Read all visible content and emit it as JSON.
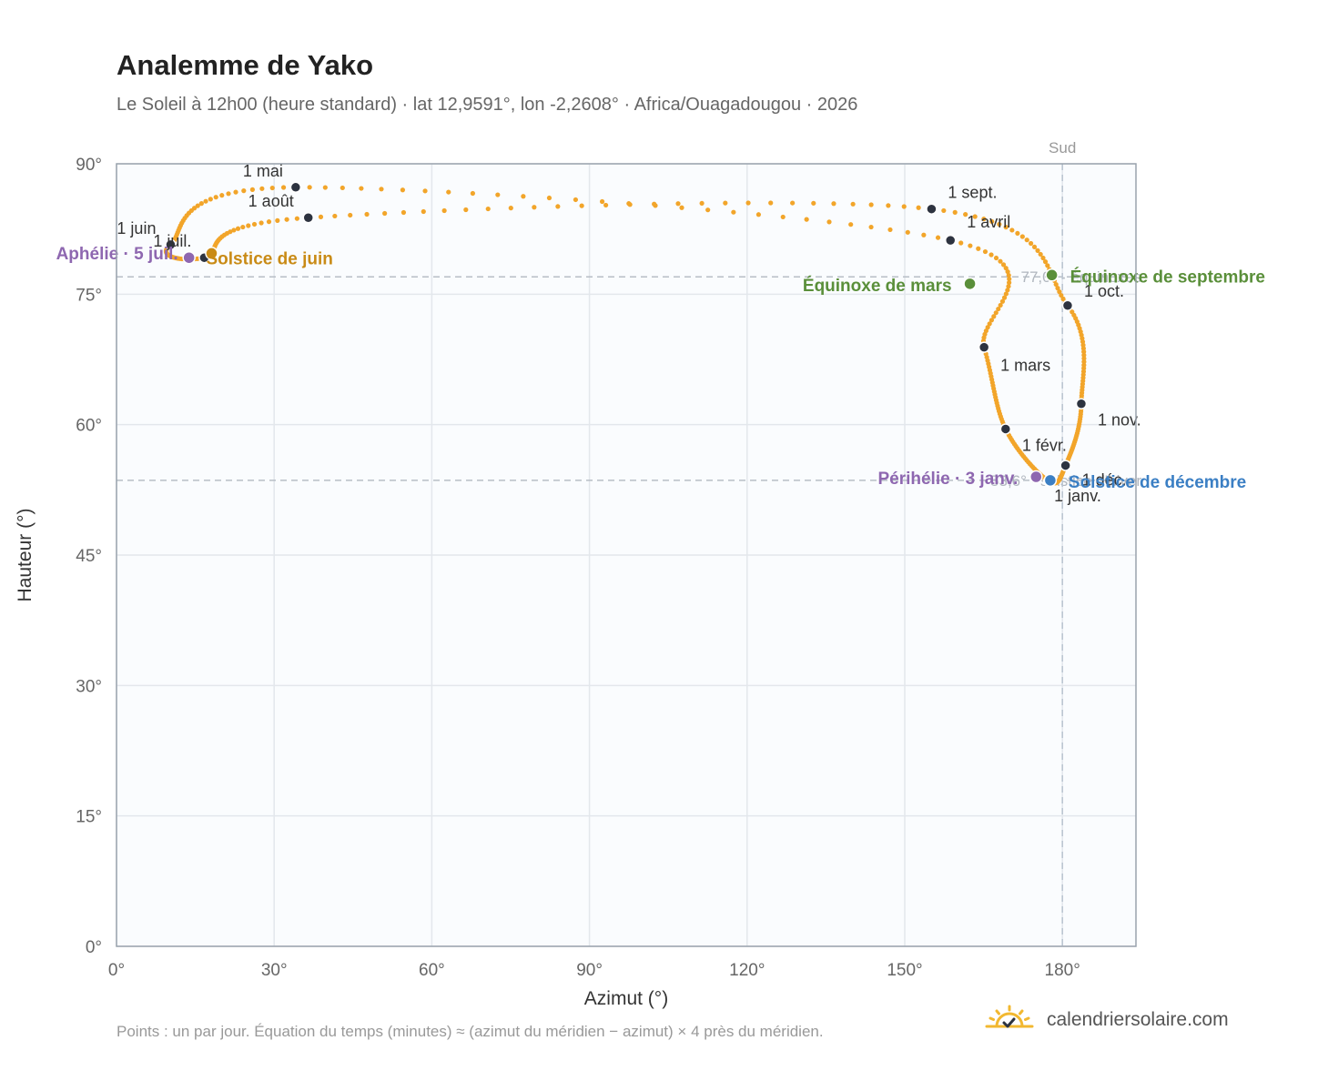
{
  "header": {
    "title": "Analemme de Yako",
    "subtitle": "Le Soleil à 12h00 (heure standard) · lat 12,9591°, lon -2,2608° · Africa/Ouagadougou · 2026"
  },
  "footer": {
    "note": "Points : un par jour. Équation du temps (minutes) ≈ (azimut du méridien − azimut) × 4 près du méridien.",
    "brand": "calendriersolaire.com",
    "brand_icon": "sun-icon"
  },
  "colors": {
    "curve": "#f2a52a",
    "month_marker": "#2d3340",
    "equinox": "#5a8f3a",
    "june_solstice": "#c98b16",
    "december_solstice": "#3b7fc4",
    "apsis": "#8e67b0",
    "grid": "#e3e7ec",
    "plot_bg": "#fafcfe",
    "axis": "#9aa3ad"
  },
  "chart_data": {
    "type": "scatter",
    "xlabel": "Azimut (°)",
    "ylabel": "Hauteur (°)",
    "xlim": [
      0,
      194
    ],
    "ylim": [
      0,
      90
    ],
    "x_ticks": [
      {
        "value": 0,
        "label": "0°"
      },
      {
        "value": 30,
        "label": "30°"
      },
      {
        "value": 60,
        "label": "60°"
      },
      {
        "value": 90,
        "label": "90°"
      },
      {
        "value": 120,
        "label": "120°"
      },
      {
        "value": 150,
        "label": "150°"
      },
      {
        "value": 180,
        "label": "180°"
      }
    ],
    "y_ticks": [
      {
        "value": 0,
        "label": "0°"
      },
      {
        "value": 15,
        "label": "15°"
      },
      {
        "value": 30,
        "label": "30°"
      },
      {
        "value": 45,
        "label": "45°"
      },
      {
        "value": 60,
        "label": "60°"
      },
      {
        "value": 75,
        "label": "75°"
      },
      {
        "value": 90,
        "label": "90°"
      }
    ],
    "grid": true,
    "south_line": {
      "azimuth": 180,
      "label": "Sud"
    },
    "reference_lines": [
      {
        "altitude": 77.0,
        "label": "77,0° · équinoxes"
      },
      {
        "altitude": 53.6,
        "label": "53,6° · solstice d'hiver"
      }
    ],
    "month_markers": [
      {
        "label": "1 janv.",
        "azimuth": 177.4,
        "altitude": 53.5
      },
      {
        "label": "1 févr.",
        "azimuth": 169.2,
        "altitude": 59.5
      },
      {
        "label": "1 mars",
        "azimuth": 165.1,
        "altitude": 68.9
      },
      {
        "label": "1 avril",
        "azimuth": 158.7,
        "altitude": 81.2
      },
      {
        "label": "1 mai",
        "azimuth": 34.1,
        "altitude": 87.3
      },
      {
        "label": "1 juin",
        "azimuth": 10.3,
        "altitude": 80.7
      },
      {
        "label": "1 juil.",
        "azimuth": 16.7,
        "altitude": 79.2
      },
      {
        "label": "1 août",
        "azimuth": 36.5,
        "altitude": 83.8
      },
      {
        "label": "1 sept.",
        "azimuth": 155.1,
        "altitude": 84.8
      },
      {
        "label": "1 oct.",
        "azimuth": 181.0,
        "altitude": 73.7
      },
      {
        "label": "1 nov.",
        "azimuth": 183.6,
        "altitude": 62.4
      },
      {
        "label": "1 déc.",
        "azimuth": 180.6,
        "altitude": 55.3
      }
    ],
    "events": [
      {
        "label": "Équinoxe de mars",
        "azimuth": 162.4,
        "altitude": 76.2,
        "kind": "equinox"
      },
      {
        "label": "Équinoxe de septembre",
        "azimuth": 178.0,
        "altitude": 77.2,
        "kind": "equinox"
      },
      {
        "label": "Solstice de juin",
        "azimuth": 18.1,
        "altitude": 79.7,
        "kind": "june_solstice"
      },
      {
        "label": "Solstice de décembre",
        "azimuth": 177.7,
        "altitude": 53.6,
        "kind": "december_solstice"
      },
      {
        "label": "Aphélie · 5 juil.",
        "azimuth": 13.8,
        "altitude": 79.2,
        "kind": "apsis"
      },
      {
        "label": "Périhélie · 3 janv.",
        "azimuth": 175.0,
        "altitude": 54.0,
        "kind": "apsis"
      }
    ],
    "daily_points_note": "one point per day"
  }
}
